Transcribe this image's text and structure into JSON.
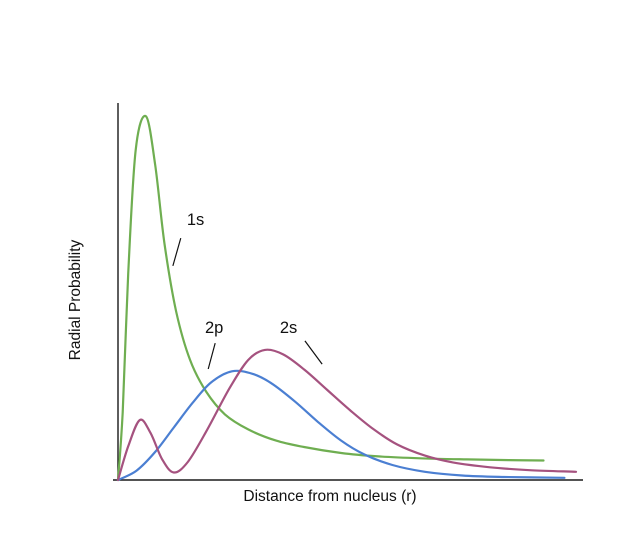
{
  "chart_data": {
    "type": "line",
    "title": "",
    "xlabel": "Distance from nucleus (r)",
    "ylabel": "Radial Probability",
    "xlim": [
      0,
      10
    ],
    "ylim": [
      0,
      1
    ],
    "grid": false,
    "ticks": "none",
    "legend_position": "none",
    "axis_color": "#1a1a1a",
    "series": [
      {
        "name": "1s",
        "color": "#6fae51",
        "x": [
          0,
          0.1,
          0.22,
          0.38,
          0.6,
          0.8,
          1.0,
          1.25,
          1.55,
          1.9,
          2.3,
          2.8,
          3.4,
          4.0,
          4.8,
          5.6,
          6.5,
          7.5,
          8.4,
          9.15
        ],
        "y": [
          0,
          0.18,
          0.55,
          0.88,
          0.97,
          0.84,
          0.63,
          0.45,
          0.32,
          0.235,
          0.175,
          0.135,
          0.105,
          0.088,
          0.072,
          0.063,
          0.058,
          0.055,
          0.053,
          0.052
        ]
      },
      {
        "name": "2p",
        "color": "#4b7fd2",
        "x": [
          0,
          0.4,
          0.8,
          1.2,
          1.6,
          2.0,
          2.45,
          2.9,
          3.3,
          3.8,
          4.3,
          4.8,
          5.3,
          5.9,
          6.6,
          7.4,
          8.3,
          9.6
        ],
        "y": [
          0,
          0.025,
          0.075,
          0.14,
          0.205,
          0.26,
          0.29,
          0.283,
          0.258,
          0.21,
          0.155,
          0.105,
          0.068,
          0.04,
          0.022,
          0.012,
          0.008,
          0.006
        ]
      },
      {
        "name": "2s",
        "color": "#a5527f",
        "x": [
          0,
          0.22,
          0.47,
          0.7,
          0.95,
          1.2,
          1.5,
          1.9,
          2.4,
          2.8,
          3.16,
          3.55,
          4.0,
          4.5,
          5.0,
          5.5,
          6.0,
          6.6,
          7.2,
          8.0,
          8.9,
          9.85
        ],
        "y": [
          0,
          0.09,
          0.16,
          0.125,
          0.055,
          0.02,
          0.048,
          0.13,
          0.245,
          0.32,
          0.347,
          0.335,
          0.295,
          0.24,
          0.185,
          0.135,
          0.095,
          0.065,
          0.047,
          0.034,
          0.026,
          0.022
        ]
      }
    ],
    "annotations": [
      {
        "text": "1s",
        "x": 1.48,
        "y": 0.68,
        "leader": {
          "x1": 1.35,
          "y1": 0.645,
          "x2": 1.18,
          "y2": 0.571
        }
      },
      {
        "text": "2p",
        "x": 1.87,
        "y": 0.392,
        "leader": {
          "x1": 2.09,
          "y1": 0.365,
          "x2": 1.94,
          "y2": 0.296
        }
      },
      {
        "text": "2s",
        "x": 3.48,
        "y": 0.392,
        "leader": {
          "x1": 4.02,
          "y1": 0.371,
          "x2": 4.39,
          "y2": 0.309
        }
      }
    ]
  }
}
